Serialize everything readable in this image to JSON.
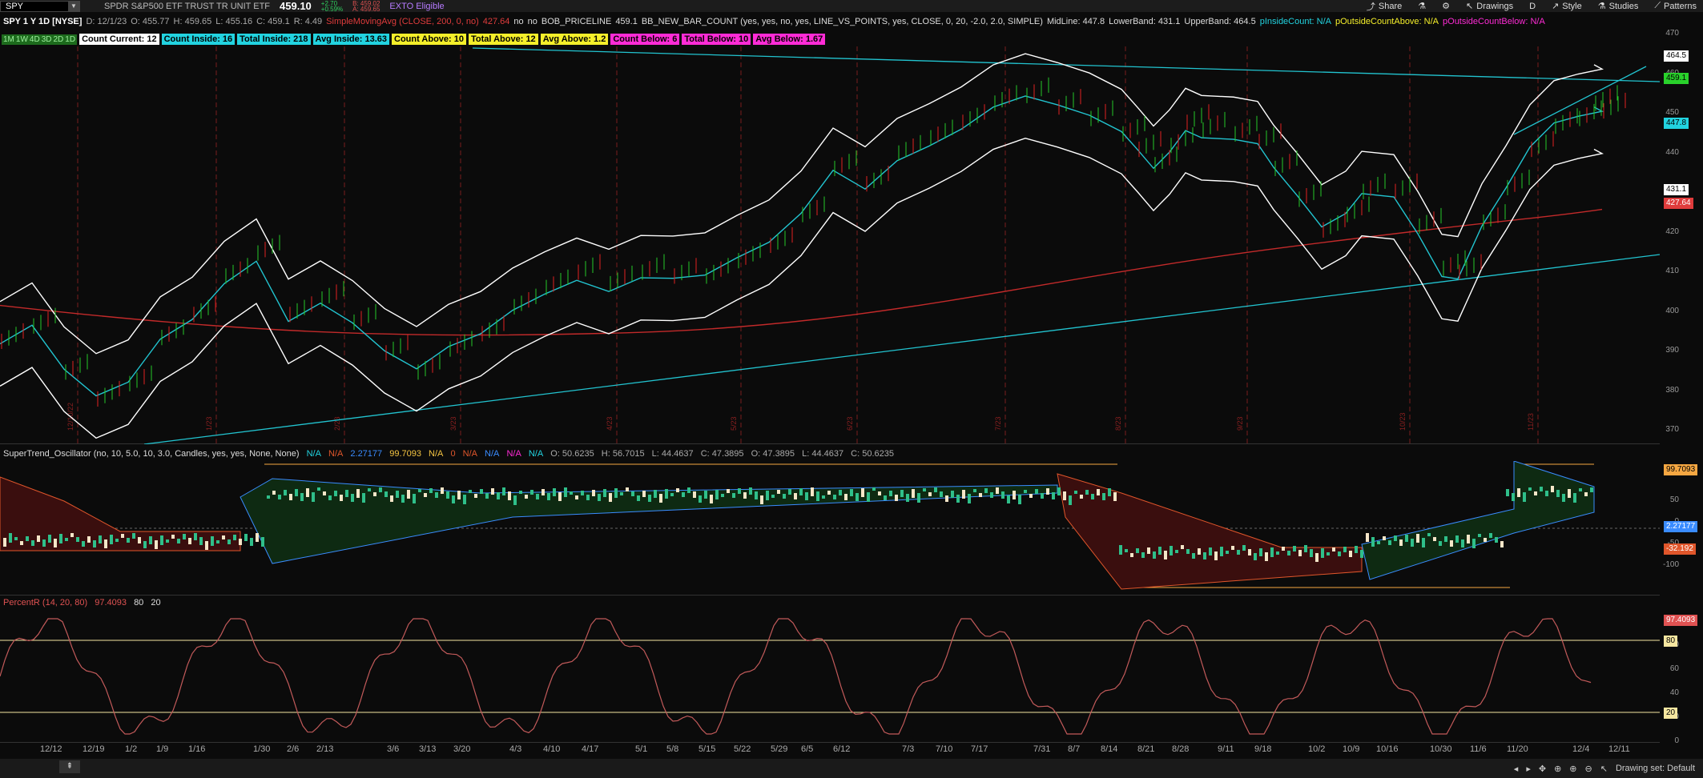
{
  "topbar": {
    "symbol": "SPY",
    "description": "SPDR S&P500 ETF TRUST TR UNIT ETF",
    "last": "459.10",
    "change": "+2.70",
    "change_pct": "+0.59%",
    "bid": "B: 459.02",
    "ask": "A: 459.65",
    "extb": "EXTO Eligible",
    "share": "Share",
    "drawings": "Drawings",
    "period": "D",
    "style": "Style",
    "studies": "Studies",
    "patterns": "Patterns"
  },
  "info": {
    "title": "SPY 1 Y 1D [NYSE]",
    "date": "D: 12/1/23",
    "open": "O: 455.77",
    "high": "H: 459.65",
    "low": "L: 455.16",
    "close": "C: 459.1",
    "range": "R: 4.49",
    "sma": "SimpleMovingAvg (CLOSE, 200, 0, no)",
    "sma_val": "427.64",
    "no1": "no",
    "no2": "no",
    "bob": "BOB_PRICELINE",
    "bob_val": "459.1",
    "bbnew": "BB_NEW_BAR_COUNT (yes, yes, no, yes, LINE_VS_POINTS, yes, CLOSE, 0, 20, -2.0, 2.0, SIMPLE)",
    "mid": "MidLine: 447.8",
    "lower": "LowerBand: 431.1",
    "upper": "UpperBand: 464.5",
    "pin": "pInsideCount: N/A",
    "pabove": "pOutsideCountAbove: N/A",
    "pbelow": "pOutsideCountBelow: N/A"
  },
  "row2": {
    "tf": [
      "1M",
      "1W",
      "4D",
      "3D",
      "2D",
      "1D"
    ],
    "chips": [
      {
        "label": "Count Current: 12",
        "bg": "#ffffff"
      },
      {
        "label": "Count Inside: 16",
        "bg": "#22d3e0"
      },
      {
        "label": "Total Inside: 218",
        "bg": "#22d3e0"
      },
      {
        "label": "Avg Inside: 13.63",
        "bg": "#22d3e0"
      },
      {
        "label": "Count Above: 10",
        "bg": "#f5ef2a"
      },
      {
        "label": "Total Above: 12",
        "bg": "#f5ef2a"
      },
      {
        "label": "Avg Above: 1.2",
        "bg": "#f5ef2a"
      },
      {
        "label": "Count Below: 6",
        "bg": "#ff2bd6"
      },
      {
        "label": "Total Below: 10",
        "bg": "#ff2bd6"
      },
      {
        "label": "Avg Below: 1.67",
        "bg": "#ff2bd6"
      }
    ]
  },
  "price_axis": {
    "ticks": [
      "470",
      "460",
      "450",
      "440",
      "430",
      "420",
      "410",
      "400",
      "390",
      "380",
      "370"
    ],
    "badge_upper": "464.5",
    "badge_last": "459.1",
    "badge_mid": "447.8",
    "badge_lower": "431.1",
    "badge_sma": "427.64"
  },
  "date_markers": [
    "12/10/22",
    "1/23",
    "2/23",
    "3/23",
    "4/23",
    "5/23",
    "6/23",
    "7/23",
    "8/23",
    "9/23",
    "10/23",
    "11/23"
  ],
  "st": {
    "label": "SuperTrend_Oscillator (no, 10, 5.0, 10, 3.0, Candles, yes, yes, None, None)",
    "vals": [
      "N/A",
      "N/A",
      "2.27177",
      "99.7093",
      "N/A",
      "0",
      "N/A",
      "N/A",
      "N/A",
      "N/A"
    ],
    "ohlc": [
      "O: 50.6235",
      "H: 56.7015",
      "L: 44.4637",
      "C: 47.3895",
      "O: 47.3895",
      "L: 44.4637",
      "C: 50.6235"
    ],
    "ticks": [
      "50",
      "0",
      "-50",
      "-100"
    ],
    "badge_top": "99.7093",
    "badge_mid": "2.27177",
    "badge_low": "-32.192"
  },
  "pr": {
    "label": "PercentR (14, 20, 80)",
    "val": "97.4093",
    "l80": "80",
    "l20": "20",
    "ticks": [
      "100",
      "80",
      "60",
      "40",
      "20",
      "0"
    ],
    "badge": "97.4093",
    "badge80": "80",
    "badge20": "20"
  },
  "dates": [
    "12/12",
    "12/19",
    "1/2",
    "1/9",
    "1/16",
    "1/30",
    "2/6",
    "2/13",
    "3/6",
    "3/13",
    "3/20",
    "4/3",
    "4/10",
    "4/17",
    "5/1",
    "5/8",
    "5/15",
    "5/22",
    "5/29",
    "6/5",
    "6/12",
    "7/3",
    "7/10",
    "7/17",
    "7/31",
    "8/7",
    "8/14",
    "8/21",
    "8/28",
    "9/11",
    "9/18",
    "10/2",
    "10/9",
    "10/16",
    "10/30",
    "11/6",
    "11/20",
    "12/4",
    "12/11"
  ],
  "status": {
    "drawing_set": "Drawing set: Default"
  }
}
